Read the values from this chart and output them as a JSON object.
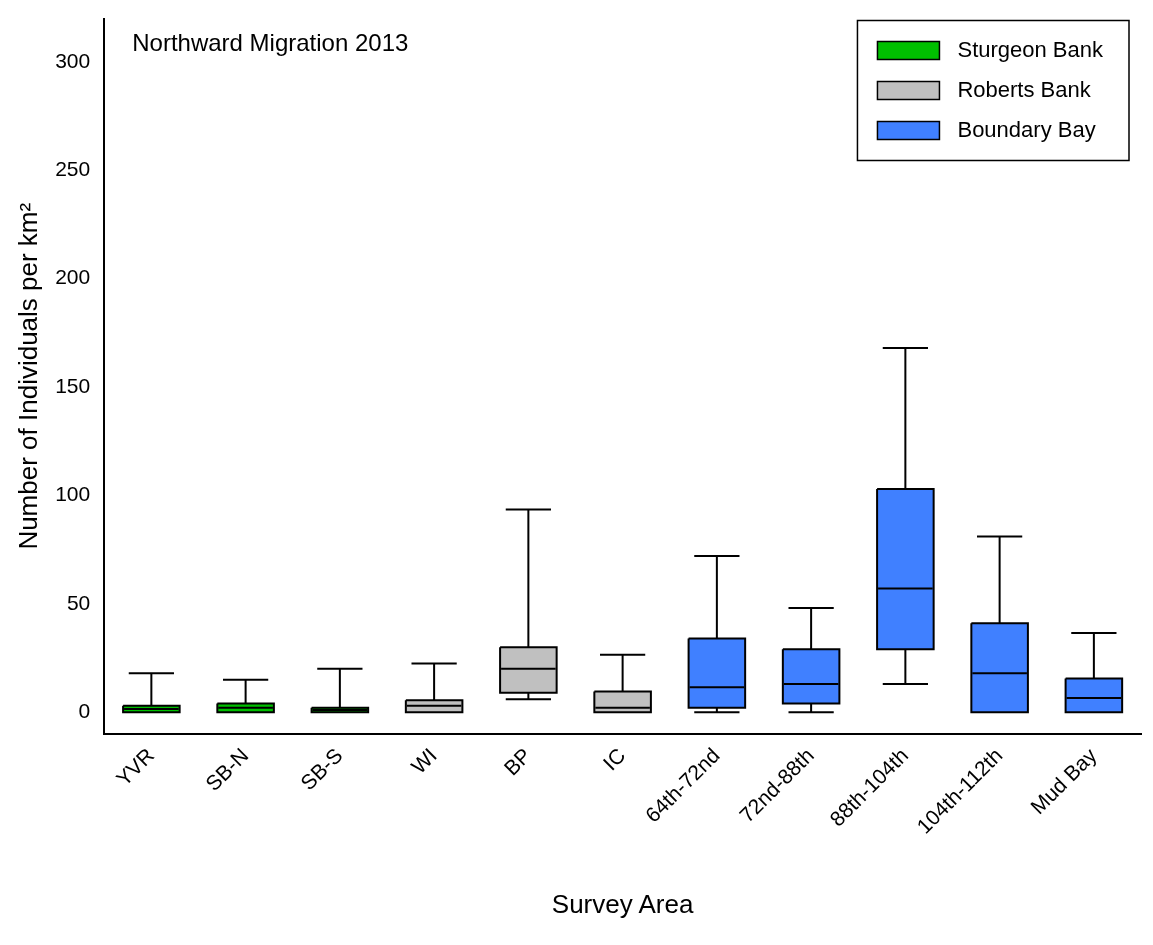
{
  "chart_data": {
    "type": "box",
    "title": "Northward Migration 2013",
    "xlabel": "Survey Area",
    "ylabel": "Number of Individuals per km²",
    "categories": [
      "YVR",
      "SB-N",
      "SB-S",
      "WI",
      "BP",
      "IC",
      "64th-72nd",
      "72nd-88th",
      "88th-104th",
      "104th-112th",
      "Mud Bay"
    ],
    "ylim": [
      -10,
      320
    ],
    "yticks": [
      0,
      50,
      100,
      150,
      200,
      250,
      300
    ],
    "grid": false,
    "legend": "top right",
    "series": [
      {
        "name": "Sturgeon Bank",
        "color": "#00c000",
        "boxes": [
          {
            "low": 0,
            "q1": 0,
            "median": 1.5,
            "q3": 3,
            "high": 18
          },
          {
            "low": 0,
            "q1": 0,
            "median": 2,
            "q3": 4,
            "high": 15
          },
          {
            "low": 0,
            "q1": 0,
            "median": 1,
            "q3": 2,
            "high": 20
          },
          null,
          null,
          null,
          null,
          null,
          null,
          null,
          null
        ]
      },
      {
        "name": "Roberts Bank",
        "color": "#c0c0c0",
        "boxes": [
          null,
          null,
          null,
          {
            "low": 0,
            "q1": 0,
            "median": 3,
            "q3": 5.5,
            "high": 22.5
          },
          {
            "low": 6,
            "q1": 9,
            "median": 20,
            "q3": 30,
            "high": 93.5
          },
          {
            "low": 0,
            "q1": 0,
            "median": 2,
            "q3": 9.5,
            "high": 26.5
          },
          null,
          null,
          null,
          null,
          null
        ]
      },
      {
        "name": "Boundary Bay",
        "color": "#4080ff",
        "boxes": [
          null,
          null,
          null,
          null,
          null,
          null,
          {
            "low": 0,
            "q1": 2,
            "median": 11.5,
            "q3": 34,
            "high": 72
          },
          {
            "low": 0,
            "q1": 4,
            "median": 13,
            "q3": 29,
            "high": 48
          },
          {
            "low": 13,
            "q1": 29,
            "median": 57,
            "q3": 103,
            "high": 168
          },
          {
            "low": 0,
            "q1": 0,
            "median": 18,
            "q3": 41,
            "high": 81
          },
          {
            "low": 0,
            "q1": 0,
            "median": 6.5,
            "q3": 15.5,
            "high": 36.5
          }
        ]
      }
    ]
  }
}
